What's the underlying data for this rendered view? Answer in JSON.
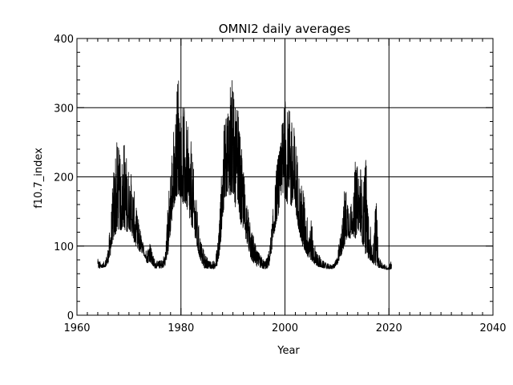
{
  "chart_data": {
    "type": "line",
    "title": "OMNI2 daily averages",
    "xlabel": "Year",
    "ylabel": "f10.7_index",
    "xlim": [
      1960,
      2040
    ],
    "ylim": [
      0,
      400
    ],
    "x_ticks": [
      1960,
      1980,
      2000,
      2020,
      2040
    ],
    "y_ticks": [
      0,
      100,
      200,
      300,
      400
    ],
    "x_tick_labels": [
      "1960",
      "1980",
      "2000",
      "2020",
      "2040"
    ],
    "y_tick_labels": [
      "0",
      "100",
      "200",
      "300",
      "400"
    ],
    "grid": true,
    "line_color": "#000000",
    "series": [
      {
        "data_start_year": 1964.0,
        "data_end_year": 2020.5,
        "envelope": {
          "x": [
            1964.0,
            1964.5,
            1965.0,
            1965.5,
            1966.0,
            1966.5,
            1967.0,
            1967.5,
            1968.0,
            1968.5,
            1969.0,
            1969.5,
            1970.0,
            1970.5,
            1971.0,
            1971.5,
            1972.0,
            1972.5,
            1973.0,
            1973.5,
            1974.0,
            1974.5,
            1975.0,
            1975.5,
            1976.0,
            1976.5,
            1977.0,
            1977.5,
            1978.0,
            1978.5,
            1979.0,
            1979.5,
            1980.0,
            1980.5,
            1981.0,
            1981.5,
            1982.0,
            1982.5,
            1983.0,
            1983.5,
            1984.0,
            1984.5,
            1985.0,
            1985.5,
            1986.0,
            1986.5,
            1987.0,
            1987.5,
            1988.0,
            1988.5,
            1989.0,
            1989.5,
            1990.0,
            1990.5,
            1991.0,
            1991.5,
            1992.0,
            1992.5,
            1993.0,
            1993.5,
            1994.0,
            1994.5,
            1995.0,
            1995.5,
            1996.0,
            1996.5,
            1997.0,
            1997.5,
            1998.0,
            1998.5,
            1999.0,
            1999.5,
            2000.0,
            2000.5,
            2001.0,
            2001.5,
            2002.0,
            2002.5,
            2003.0,
            2003.5,
            2004.0,
            2004.5,
            2005.0,
            2005.5,
            2006.0,
            2006.5,
            2007.0,
            2007.5,
            2008.0,
            2008.5,
            2009.0,
            2009.5,
            2010.0,
            2010.5,
            2011.0,
            2011.5,
            2012.0,
            2012.5,
            2013.0,
            2013.5,
            2014.0,
            2014.5,
            2015.0,
            2015.5,
            2016.0,
            2016.5,
            2017.0,
            2017.5,
            2018.0,
            2018.5,
            2019.0,
            2019.5,
            2020.0,
            2020.5
          ],
          "low": [
            68,
            67,
            69,
            70,
            75,
            88,
            110,
            118,
            125,
            122,
            128,
            118,
            125,
            118,
            105,
            95,
            92,
            90,
            85,
            75,
            78,
            72,
            68,
            68,
            68,
            68,
            72,
            88,
            120,
            150,
            170,
            175,
            170,
            160,
            160,
            140,
            130,
            120,
            100,
            85,
            75,
            68,
            68,
            67,
            67,
            67,
            72,
            90,
            140,
            165,
            180,
            170,
            175,
            155,
            160,
            130,
            125,
            110,
            95,
            80,
            75,
            70,
            70,
            68,
            67,
            67,
            72,
            95,
            120,
            140,
            150,
            165,
            170,
            160,
            160,
            155,
            150,
            130,
            110,
            95,
            90,
            82,
            80,
            75,
            72,
            70,
            69,
            68,
            67,
            67,
            67,
            68,
            72,
            80,
            90,
            100,
            115,
            110,
            118,
            108,
            125,
            118,
            100,
            88,
            82,
            78,
            74,
            72,
            69,
            68,
            67,
            66,
            66,
            67
          ],
          "high": [
            82,
            78,
            76,
            80,
            100,
            140,
            210,
            255,
            245,
            220,
            260,
            235,
            215,
            205,
            180,
            150,
            135,
            110,
            98,
            95,
            112,
            90,
            82,
            78,
            80,
            82,
            95,
            165,
            225,
            270,
            295,
            372,
            300,
            305,
            285,
            265,
            250,
            205,
            165,
            125,
            105,
            90,
            85,
            78,
            78,
            80,
            100,
            165,
            240,
            295,
            315,
            363,
            335,
            295,
            300,
            250,
            220,
            175,
            150,
            125,
            115,
            95,
            90,
            85,
            80,
            82,
            98,
            135,
            180,
            230,
            240,
            290,
            327,
            300,
            295,
            285,
            265,
            230,
            185,
            195,
            155,
            140,
            145,
            110,
            95,
            90,
            80,
            78,
            75,
            74,
            73,
            75,
            85,
            110,
            135,
            190,
            180,
            170,
            155,
            225,
            215,
            230,
            175,
            255,
            150,
            125,
            100,
            185,
            85,
            80,
            75,
            72,
            71,
            80
          ]
        }
      }
    ]
  }
}
